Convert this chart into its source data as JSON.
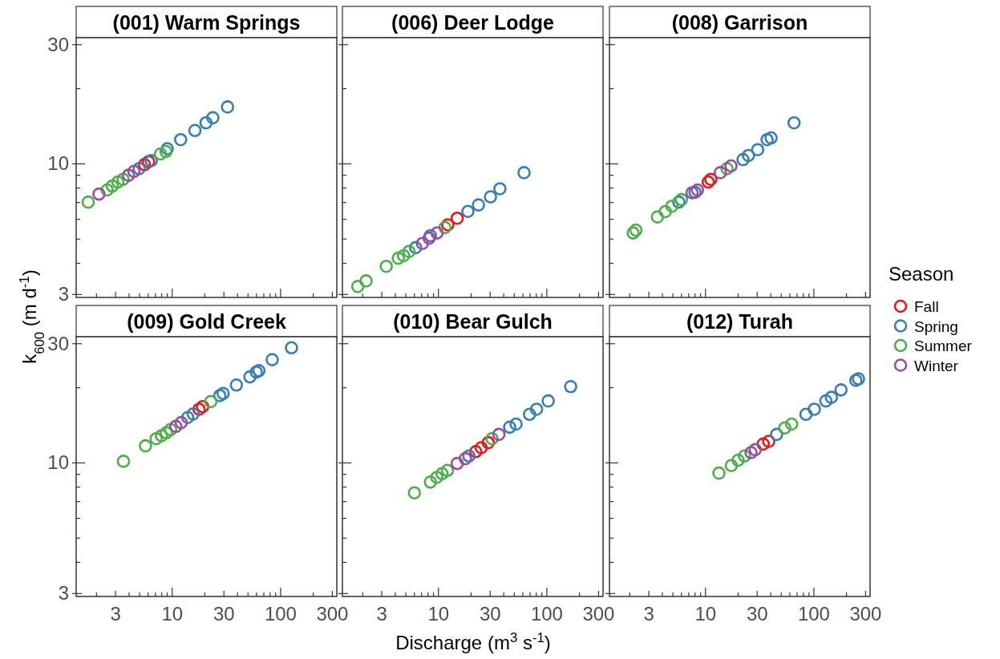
{
  "chart_data": [
    {
      "type": "scatter",
      "title": "(001) Warm Springs",
      "ylabel": "k$_{600}$ (m d$^{-1}$)",
      "log": "xy",
      "marker": "circle",
      "tick_labels": "y",
      "xlim": [
        1.3,
        330
      ],
      "ylim": [
        2.92,
        32
      ],
      "xticks": [
        {
          "value": 2,
          "label": null
        },
        3,
        {
          "value": 4,
          "label": null
        },
        {
          "value": 5,
          "label": null
        },
        {
          "value": 6,
          "label": null
        },
        {
          "value": 7,
          "label": null
        },
        {
          "value": 8,
          "label": null
        },
        {
          "value": 9,
          "label": null
        },
        10,
        {
          "value": 20,
          "label": null
        },
        30,
        {
          "value": 40,
          "label": null
        },
        {
          "value": 50,
          "label": null
        },
        {
          "value": 60,
          "label": null
        },
        {
          "value": 70,
          "label": null
        },
        {
          "value": 80,
          "label": null
        },
        {
          "value": 90,
          "label": null
        },
        100,
        {
          "value": 200,
          "label": null
        },
        300
      ],
      "yticks": [
        3,
        {
          "value": 4,
          "label": null
        },
        {
          "value": 5,
          "label": null
        },
        {
          "value": 6,
          "label": null
        },
        {
          "value": 7,
          "label": null
        },
        {
          "value": 8,
          "label": null
        },
        {
          "value": 9,
          "label": null
        },
        10,
        {
          "value": 20,
          "label": null
        },
        30
      ],
      "series": [
        {
          "color": "#e41a1c",
          "x": [
            5.55,
            6.05
          ],
          "values": [
            9.93,
            10.2
          ]
        },
        {
          "color": "#377eb8",
          "x": [
            4.95,
            6.4,
            9.0,
            11.96,
            16.2,
            20.5,
            23.7,
            32.4
          ],
          "values": [
            9.57,
            10.3,
            11.5,
            12.5,
            13.6,
            14.6,
            15.3,
            16.9
          ]
        },
        {
          "color": "#4daf4a",
          "x": [
            1.68,
            2.51,
            2.8,
            3.15,
            3.52,
            7.8,
            8.75
          ],
          "values": [
            7.03,
            7.86,
            8.15,
            8.46,
            8.67,
            10.96,
            11.2
          ]
        },
        {
          "color": "#984ea3",
          "x": [
            2.11,
            3.95,
            4.43
          ],
          "values": [
            7.57,
            9.0,
            9.33
          ]
        }
      ]
    },
    {
      "type": "scatter",
      "title": "(006) Deer Lodge",
      "log": "xy",
      "marker": "circle",
      "tick_labels": false,
      "xlim": [
        1.3,
        330
      ],
      "ylim": [
        2.92,
        32
      ],
      "xticks": [
        {
          "value": 2,
          "label": null
        },
        3,
        {
          "value": 4,
          "label": null
        },
        {
          "value": 5,
          "label": null
        },
        {
          "value": 6,
          "label": null
        },
        {
          "value": 7,
          "label": null
        },
        {
          "value": 8,
          "label": null
        },
        {
          "value": 9,
          "label": null
        },
        10,
        {
          "value": 20,
          "label": null
        },
        30,
        {
          "value": 40,
          "label": null
        },
        {
          "value": 50,
          "label": null
        },
        {
          "value": 60,
          "label": null
        },
        {
          "value": 70,
          "label": null
        },
        {
          "value": 80,
          "label": null
        },
        {
          "value": 90,
          "label": null
        },
        100,
        {
          "value": 200,
          "label": null
        },
        300
      ],
      "yticks": [
        3,
        {
          "value": 4,
          "label": null
        },
        {
          "value": 5,
          "label": null
        },
        {
          "value": 6,
          "label": null
        },
        {
          "value": 7,
          "label": null
        },
        {
          "value": 8,
          "label": null
        },
        {
          "value": 9,
          "label": null
        },
        10,
        {
          "value": 20,
          "label": null
        },
        30
      ],
      "series": [
        {
          "color": "#e41a1c",
          "x": [
            12.2,
            14.9
          ],
          "values": [
            5.7,
            6.06
          ]
        },
        {
          "color": "#377eb8",
          "x": [
            6.16,
            8.43,
            18.7,
            23.4,
            30.2,
            36.9,
            61.6
          ],
          "values": [
            4.62,
            5.16,
            6.45,
            6.85,
            7.38,
            7.95,
            9.22
          ]
        },
        {
          "color": "#4daf4a",
          "x": [
            1.8,
            2.15,
            3.3,
            4.26,
            4.77,
            5.35,
            11.5
          ],
          "values": [
            3.23,
            3.4,
            3.89,
            4.19,
            4.29,
            4.46,
            5.56
          ]
        },
        {
          "color": "#984ea3",
          "x": [
            7.11,
            8.2,
            9.7
          ],
          "values": [
            4.8,
            5.04,
            5.29
          ]
        }
      ]
    },
    {
      "type": "scatter",
      "title": "(008) Garrison",
      "legend": "right",
      "legend_title": "Season",
      "log": "xy",
      "marker": "circle",
      "tick_labels": false,
      "xlim": [
        1.3,
        330
      ],
      "ylim": [
        2.92,
        32
      ],
      "xticks": [
        {
          "value": 2,
          "label": null
        },
        3,
        {
          "value": 4,
          "label": null
        },
        {
          "value": 5,
          "label": null
        },
        {
          "value": 6,
          "label": null
        },
        {
          "value": 7,
          "label": null
        },
        {
          "value": 8,
          "label": null
        },
        {
          "value": 9,
          "label": null
        },
        10,
        {
          "value": 20,
          "label": null
        },
        30,
        {
          "value": 40,
          "label": null
        },
        {
          "value": 50,
          "label": null
        },
        {
          "value": 60,
          "label": null
        },
        {
          "value": 70,
          "label": null
        },
        {
          "value": 80,
          "label": null
        },
        {
          "value": 90,
          "label": null
        },
        100,
        {
          "value": 200,
          "label": null
        },
        300
      ],
      "yticks": [
        3,
        {
          "value": 4,
          "label": null
        },
        {
          "value": 5,
          "label": null
        },
        {
          "value": 6,
          "label": null
        },
        {
          "value": 7,
          "label": null
        },
        {
          "value": 8,
          "label": null
        },
        {
          "value": 9,
          "label": null
        },
        10,
        {
          "value": 20,
          "label": null
        },
        30
      ],
      "series": [
        {
          "name": "Fall",
          "color": "#e41a1c",
          "x": [
            10.6,
            11.2
          ],
          "values": [
            8.46,
            8.67
          ]
        },
        {
          "name": "Spring",
          "color": "#377eb8",
          "x": [
            5.67,
            8.0,
            22.2,
            24.9,
            30.3,
            37,
            40.3,
            65.6
          ],
          "values": [
            7.03,
            7.7,
            10.4,
            10.8,
            11.4,
            12.5,
            12.7,
            14.6
          ]
        },
        {
          "name": "Summer",
          "color": "#4daf4a",
          "x": [
            2.15,
            2.28,
            3.6,
            4.26,
            4.9,
            6.0,
            15.8
          ],
          "values": [
            5.29,
            5.43,
            6.13,
            6.44,
            6.77,
            7.2,
            9.57
          ]
        },
        {
          "name": "Winter",
          "color": "#984ea3",
          "x": [
            7.52,
            8.43,
            13.7,
            17.2
          ],
          "values": [
            7.66,
            7.86,
            9.22,
            9.81
          ]
        }
      ]
    },
    {
      "type": "scatter",
      "title": "(009) Gold Creek",
      "log": "xy",
      "marker": "circle",
      "xlim": [
        1.3,
        330
      ],
      "ylim": [
        2.92,
        32
      ],
      "xticks": [
        {
          "value": 2,
          "label": null
        },
        3,
        {
          "value": 4,
          "label": null
        },
        {
          "value": 5,
          "label": null
        },
        {
          "value": 6,
          "label": null
        },
        {
          "value": 7,
          "label": null
        },
        {
          "value": 8,
          "label": null
        },
        {
          "value": 9,
          "label": null
        },
        10,
        {
          "value": 20,
          "label": null
        },
        30,
        {
          "value": 40,
          "label": null
        },
        {
          "value": 50,
          "label": null
        },
        {
          "value": 60,
          "label": null
        },
        {
          "value": 70,
          "label": null
        },
        {
          "value": 80,
          "label": null
        },
        {
          "value": 90,
          "label": null
        },
        100,
        {
          "value": 200,
          "label": null
        },
        300
      ],
      "yticks": [
        3,
        {
          "value": 4,
          "label": null
        },
        {
          "value": 5,
          "label": null
        },
        {
          "value": 6,
          "label": null
        },
        {
          "value": 7,
          "label": null
        },
        {
          "value": 8,
          "label": null
        },
        {
          "value": 9,
          "label": null
        },
        10,
        {
          "value": 20,
          "label": null
        },
        30
      ],
      "series": [
        {
          "color": "#e41a1c",
          "x": [
            17.7,
            19.1
          ],
          "values": [
            16.4,
            16.8
          ]
        },
        {
          "color": "#377eb8",
          "x": [
            13.9,
            15.6,
            27.5,
            29.5,
            39.1,
            52.1,
            59.6,
            63.1,
            83.7,
            126
          ],
          "values": [
            15.2,
            15.7,
            18.6,
            18.96,
            20.5,
            22.1,
            23.1,
            23.4,
            25.9,
            28.9
          ]
        },
        {
          "color": "#4daf4a",
          "x": [
            3.55,
            5.67,
            7.11,
            7.96,
            8.82,
            9.66,
            22.7
          ],
          "values": [
            10.15,
            11.7,
            12.5,
            12.85,
            13.2,
            13.6,
            17.6
          ]
        },
        {
          "color": "#984ea3",
          "x": [
            10.8,
            12.1
          ],
          "values": [
            14.0,
            14.5
          ]
        }
      ]
    },
    {
      "type": "scatter",
      "title": "(010) Bear Gulch",
      "xlabel": "Discharge (m$^{3}$ s$^{-1}$)",
      "log": "xy",
      "marker": "circle",
      "tick_labels": "x",
      "xlim": [
        1.3,
        330
      ],
      "ylim": [
        2.92,
        32
      ],
      "xticks": [
        {
          "value": 2,
          "label": null
        },
        3,
        {
          "value": 4,
          "label": null
        },
        {
          "value": 5,
          "label": null
        },
        {
          "value": 6,
          "label": null
        },
        {
          "value": 7,
          "label": null
        },
        {
          "value": 8,
          "label": null
        },
        {
          "value": 9,
          "label": null
        },
        10,
        {
          "value": 20,
          "label": null
        },
        30,
        {
          "value": 40,
          "label": null
        },
        {
          "value": 50,
          "label": null
        },
        {
          "value": 60,
          "label": null
        },
        {
          "value": 70,
          "label": null
        },
        {
          "value": 80,
          "label": null
        },
        {
          "value": 90,
          "label": null
        },
        100,
        {
          "value": 200,
          "label": null
        },
        300
      ],
      "yticks": [
        3,
        {
          "value": 4,
          "label": null
        },
        {
          "value": 5,
          "label": null
        },
        {
          "value": 6,
          "label": null
        },
        {
          "value": 7,
          "label": null
        },
        {
          "value": 8,
          "label": null
        },
        {
          "value": 9,
          "label": null
        },
        10,
        {
          "value": 20,
          "label": null
        },
        30
      ],
      "series": [
        {
          "color": "#e41a1c",
          "x": [
            22.1,
            24.8,
            28.8
          ],
          "values": [
            11.1,
            11.5,
            12.05
          ]
        },
        {
          "color": "#377eb8",
          "x": [
            19.1,
            45.4,
            52,
            69.2,
            80.4,
            103,
            166
          ],
          "values": [
            10.66,
            13.9,
            14.3,
            15.65,
            16.4,
            17.7,
            20.2
          ]
        },
        {
          "color": "#4daf4a",
          "x": [
            6.0,
            8.43,
            9.66,
            10.8,
            12.1,
            31.2
          ],
          "values": [
            7.59,
            8.38,
            8.75,
            9.06,
            9.33,
            12.5
          ]
        },
        {
          "color": "#984ea3",
          "x": [
            14.9,
            17.7,
            36.1
          ],
          "values": [
            9.95,
            10.4,
            13.0
          ]
        }
      ]
    },
    {
      "type": "scatter",
      "title": "(012) Turah",
      "log": "xy",
      "marker": "circle",
      "tick_labels": "x",
      "xlim": [
        1.3,
        330
      ],
      "ylim": [
        2.92,
        32
      ],
      "xticks": [
        {
          "value": 2,
          "label": null
        },
        3,
        {
          "value": 4,
          "label": null
        },
        {
          "value": 5,
          "label": null
        },
        {
          "value": 6,
          "label": null
        },
        {
          "value": 7,
          "label": null
        },
        {
          "value": 8,
          "label": null
        },
        {
          "value": 9,
          "label": null
        },
        10,
        {
          "value": 20,
          "label": null
        },
        30,
        {
          "value": 40,
          "label": null
        },
        {
          "value": 50,
          "label": null
        },
        {
          "value": 60,
          "label": null
        },
        {
          "value": 70,
          "label": null
        },
        {
          "value": 80,
          "label": null
        },
        {
          "value": 90,
          "label": null
        },
        100,
        {
          "value": 200,
          "label": null
        },
        300
      ],
      "yticks": [
        3,
        {
          "value": 4,
          "label": null
        },
        {
          "value": 5,
          "label": null
        },
        {
          "value": 6,
          "label": null
        },
        {
          "value": 7,
          "label": null
        },
        {
          "value": 8,
          "label": null
        },
        {
          "value": 9,
          "label": null
        },
        10,
        {
          "value": 20,
          "label": null
        },
        30
      ],
      "series": [
        {
          "color": "#e41a1c",
          "x": [
            34.1,
            38.3
          ],
          "values": [
            11.9,
            12.2
          ]
        },
        {
          "color": "#377eb8",
          "x": [
            45.3,
            84.5,
            101,
            129,
            145,
            178,
            244,
            258
          ],
          "values": [
            13.0,
            15.65,
            16.4,
            17.7,
            18.3,
            19.6,
            21.4,
            21.7
          ]
        },
        {
          "color": "#4daf4a",
          "x": [
            13.3,
            17.3,
            20.0,
            22.9,
            53.9,
            62.4
          ],
          "values": [
            9.1,
            9.76,
            10.25,
            10.66,
            13.8,
            14.3
          ]
        },
        {
          "color": "#984ea3",
          "x": [
            26.3,
            28.8
          ],
          "values": [
            11.0,
            11.3
          ]
        }
      ]
    }
  ]
}
